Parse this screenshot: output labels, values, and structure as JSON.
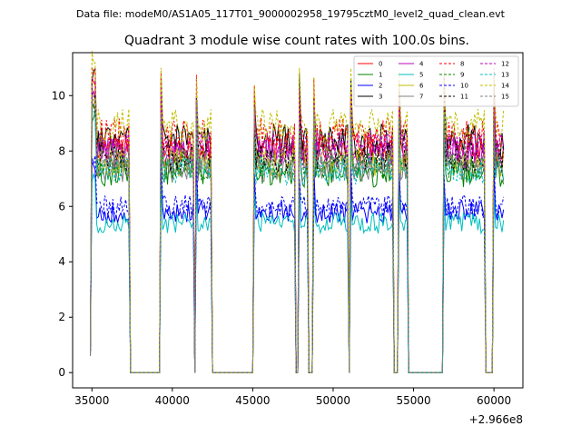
{
  "chart_data": {
    "type": "line",
    "suptitle": "Data file: modeM0/AS1A05_117T01_9000002958_19795cztM0_level2_quad_clean.evt",
    "title": "Quadrant 3 module wise count rates with 100.0s bins.",
    "xlabel": "",
    "ylabel": "",
    "x_offset_label": "+2.966e8",
    "xlim": [
      33800,
      61800
    ],
    "ylim": [
      -0.55,
      11.55
    ],
    "x_ticks": [
      35000,
      40000,
      45000,
      50000,
      55000,
      60000
    ],
    "x_tick_labels": [
      "35000",
      "40000",
      "45000",
      "50000",
      "55000",
      "60000"
    ],
    "y_ticks": [
      0,
      2,
      4,
      6,
      8,
      10
    ],
    "y_tick_labels": [
      "0",
      "2",
      "4",
      "6",
      "8",
      "10"
    ],
    "legend_position": "top-right",
    "gaps": [
      [
        37300,
        39300
      ],
      [
        41300,
        41500
      ],
      [
        42400,
        45100
      ],
      [
        47600,
        47900
      ],
      [
        48400,
        48800
      ],
      [
        50900,
        51100
      ],
      [
        53700,
        54100
      ],
      [
        54600,
        56900
      ],
      [
        59400,
        60000
      ]
    ],
    "time_range": [
      34900,
      60600
    ],
    "bin_seconds": 100,
    "series": [
      {
        "name": "0",
        "level": 8.1,
        "color": "#ff0000",
        "dash": "solid"
      },
      {
        "name": "1",
        "level": 7.2,
        "color": "#008000",
        "dash": "solid"
      },
      {
        "name": "2",
        "level": 5.8,
        "color": "#0000ff",
        "dash": "solid"
      },
      {
        "name": "3",
        "level": 8.4,
        "color": "#000000",
        "dash": "solid"
      },
      {
        "name": "4",
        "level": 7.9,
        "color": "#bf00bf",
        "dash": "solid"
      },
      {
        "name": "5",
        "level": 5.4,
        "color": "#00bfbf",
        "dash": "solid"
      },
      {
        "name": "6",
        "level": 7.6,
        "color": "#bfbf00",
        "dash": "solid"
      },
      {
        "name": "7",
        "level": 7.4,
        "color": "#808080",
        "dash": "solid"
      },
      {
        "name": "8",
        "level": 8.6,
        "color": "#ff0000",
        "dash": "dashed"
      },
      {
        "name": "9",
        "level": 7.5,
        "color": "#008000",
        "dash": "dashed"
      },
      {
        "name": "10",
        "level": 6.0,
        "color": "#0000ff",
        "dash": "dashed"
      },
      {
        "name": "11",
        "level": 7.8,
        "color": "#000000",
        "dash": "dashed"
      },
      {
        "name": "12",
        "level": 8.2,
        "color": "#bf00bf",
        "dash": "dashed"
      },
      {
        "name": "13",
        "level": 7.3,
        "color": "#00bfbf",
        "dash": "dashed"
      },
      {
        "name": "14",
        "level": 8.9,
        "color": "#bfbf00",
        "dash": "dashed"
      },
      {
        "name": "15",
        "level": 7.7,
        "color": "#808080",
        "dash": "dashed"
      }
    ]
  }
}
